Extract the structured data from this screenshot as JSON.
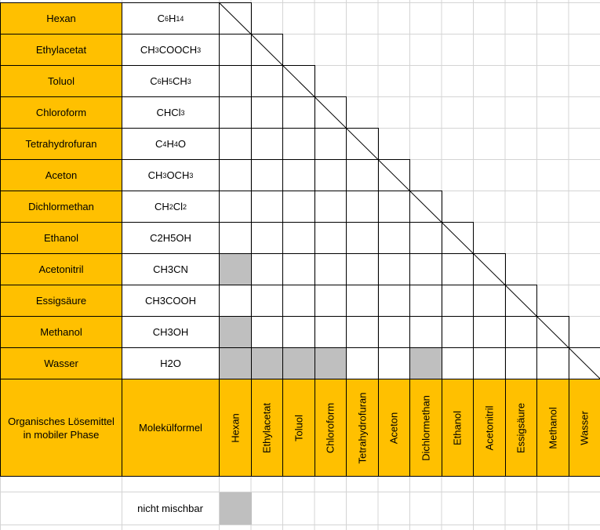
{
  "table": {
    "rows": [
      {
        "name": "Hexan",
        "formula_parts": [
          [
            "C",
            ""
          ],
          [
            "6",
            "sub"
          ],
          [
            "H",
            ""
          ],
          [
            "14",
            "sub"
          ]
        ]
      },
      {
        "name": "Ethylacetat",
        "formula_parts": [
          [
            "CH",
            ""
          ],
          [
            "3",
            "sub"
          ],
          [
            "COOCH",
            ""
          ],
          [
            "3",
            "sub"
          ]
        ]
      },
      {
        "name": "Toluol",
        "formula_parts": [
          [
            "C",
            ""
          ],
          [
            "6",
            "sub"
          ],
          [
            "H",
            ""
          ],
          [
            "5",
            "sub"
          ],
          [
            "CH",
            ""
          ],
          [
            "3",
            "sub"
          ]
        ]
      },
      {
        "name": "Chloroform",
        "formula_parts": [
          [
            "CHCl",
            ""
          ],
          [
            "3",
            "sub"
          ]
        ]
      },
      {
        "name": "Tetrahydrofuran",
        "formula_parts": [
          [
            "C",
            ""
          ],
          [
            "4",
            "sub"
          ],
          [
            "H",
            ""
          ],
          [
            "4",
            "sub"
          ],
          [
            "O",
            ""
          ]
        ]
      },
      {
        "name": "Aceton",
        "formula_parts": [
          [
            "CH",
            ""
          ],
          [
            "3",
            "sub"
          ],
          [
            "OCH",
            ""
          ],
          [
            "3",
            "sub"
          ]
        ]
      },
      {
        "name": "Dichlormethan",
        "formula_parts": [
          [
            "CH",
            ""
          ],
          [
            "2",
            "sub"
          ],
          [
            "Cl",
            ""
          ],
          [
            "2",
            "sub"
          ]
        ]
      },
      {
        "name": "Ethanol",
        "formula_parts": [
          [
            "C2H5OH",
            ""
          ]
        ]
      },
      {
        "name": "Acetonitril",
        "formula_parts": [
          [
            "CH3CN",
            ""
          ]
        ]
      },
      {
        "name": "Essigsäure",
        "formula_parts": [
          [
            "CH3COOH",
            ""
          ]
        ]
      },
      {
        "name": "Methanol",
        "formula_parts": [
          [
            "CH3OH",
            ""
          ]
        ]
      },
      {
        "name": "Wasser",
        "formula_parts": [
          [
            "H2O",
            ""
          ]
        ]
      }
    ],
    "header": {
      "solvent_label": "Organisches Lösemittel in mobiler Phase",
      "formula_label": "Molekülformel",
      "columns": [
        "Hexan",
        "Ethylacetat",
        "Toluol",
        "Chloroform",
        "Tetrahydrofuran",
        "Aceton",
        "Dichlormethan",
        "Ethanol",
        "Acetonitril",
        "Essigsäure",
        "Methanol",
        "Wasser"
      ]
    },
    "immiscible_pairs": [
      [
        8,
        0
      ],
      [
        10,
        0
      ],
      [
        11,
        0
      ],
      [
        11,
        1
      ],
      [
        11,
        2
      ],
      [
        11,
        3
      ],
      [
        11,
        6
      ]
    ]
  },
  "legend": {
    "label": "nicht mischbar"
  },
  "colors": {
    "header_orange": "#ffc000",
    "immiscible_gray": "#bfbfbf",
    "gridline": "#d4d4d4",
    "border": "#000000"
  }
}
